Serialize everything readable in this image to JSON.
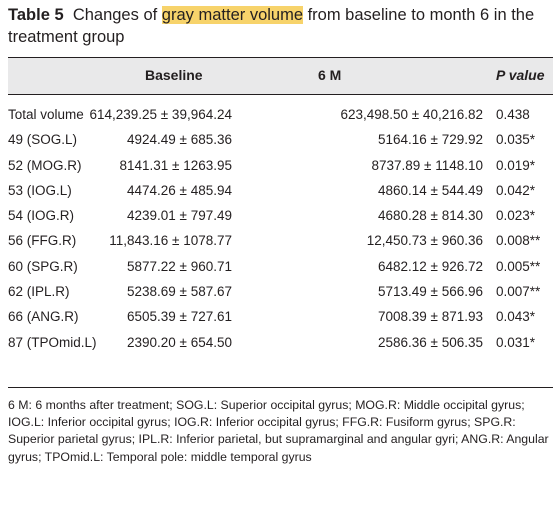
{
  "caption": {
    "label": "Table 5",
    "text_before": "Changes of ",
    "highlight": "gray matter volume",
    "text_after": " from baseline to month 6 in the treatment group",
    "highlight_color": "#f7d36b"
  },
  "table": {
    "headers": {
      "region": "",
      "baseline": "Baseline",
      "month6": "6 M",
      "pvalue": "P value"
    },
    "rows": [
      {
        "region": "Total volume",
        "baseline": "614,239.25 ± 39,964.24",
        "month6": "623,498.50 ± 40,216.82",
        "pvalue": "0.438"
      },
      {
        "region": "49 (SOG.L)",
        "baseline": "4924.49 ± 685.36",
        "month6": "5164.16 ± 729.92",
        "pvalue": "0.035*"
      },
      {
        "region": "52 (MOG.R)",
        "baseline": "8141.31 ± 1263.95",
        "month6": "8737.89 ± 1148.10",
        "pvalue": "0.019*"
      },
      {
        "region": "53 (IOG.L)",
        "baseline": "4474.26 ± 485.94",
        "month6": "4860.14 ± 544.49",
        "pvalue": "0.042*"
      },
      {
        "region": "54 (IOG.R)",
        "baseline": "4239.01 ± 797.49",
        "month6": "4680.28 ± 814.30",
        "pvalue": "0.023*"
      },
      {
        "region": "56 (FFG.R)",
        "baseline": "11,843.16 ± 1078.77",
        "month6": "12,450.73 ± 960.36",
        "pvalue": "0.008**"
      },
      {
        "region": "60 (SPG.R)",
        "baseline": "5877.22 ± 960.71",
        "month6": "6482.12 ± 926.72",
        "pvalue": "0.005**"
      },
      {
        "region": "62 (IPL.R)",
        "baseline": "5238.69 ± 587.67",
        "month6": "5713.49 ± 566.96",
        "pvalue": "0.007**"
      },
      {
        "region": "66 (ANG.R)",
        "baseline": "6505.39 ± 727.61",
        "month6": "7008.39 ± 871.93",
        "pvalue": "0.043*"
      },
      {
        "region": "87 (TPOmid.L)",
        "baseline": "2390.20 ± 654.50",
        "month6": "2586.36 ± 506.35",
        "pvalue": "0.031*"
      }
    ]
  },
  "footnote": "6 M: 6 months after treatment; SOG.L: Superior occipital gyrus; MOG.R: Middle occipital gyrus; IOG.L: Inferior occipital gyrus; IOG.R: Inferior occipital gyrus; FFG.R: Fusiform gyrus; SPG.R: Superior parietal gyrus; IPL.R: Inferior parietal, but supramarginal and angular gyri; ANG.R: Angular gyrus; TPOmid.L: Temporal pole: middle temporal gyrus"
}
